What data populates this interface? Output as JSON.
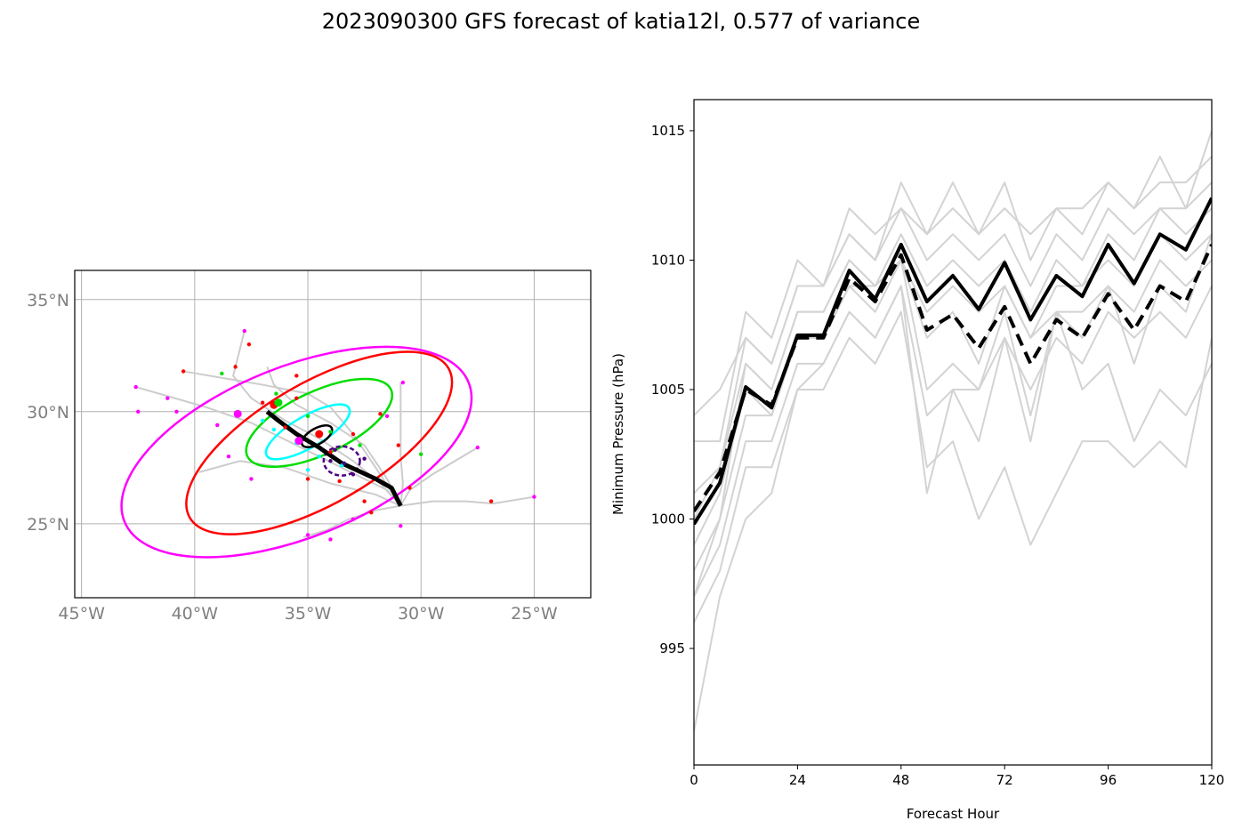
{
  "title": "2023090300 GFS forecast of katia12l, 0.577 of variance",
  "chart_data": [
    {
      "type": "scatter",
      "subtype": "map-track",
      "xlim": [
        -45.3,
        -22.5
      ],
      "ylim": [
        21.7,
        36.3
      ],
      "x_ticks": [
        -45,
        -40,
        -35,
        -30,
        -25
      ],
      "x_tick_labels": [
        "45°W",
        "40°W",
        "35°W",
        "30°W",
        "25°W"
      ],
      "y_ticks": [
        25,
        30,
        35
      ],
      "y_tick_labels": [
        "25°N",
        "30°N",
        "35°N"
      ],
      "grid": true,
      "mean_track": {
        "lon": [
          -30.9,
          -31.3,
          -32.0,
          -33.5,
          -34.5,
          -35.5,
          -36.3,
          -36.8
        ],
        "lat": [
          25.8,
          26.6,
          27.0,
          27.7,
          28.4,
          29.0,
          29.6,
          30.0
        ]
      },
      "ensemble_tracks": [
        {
          "lon": [
            -30.9,
            -31.8,
            -33.0,
            -34.5,
            -36.0,
            -37.5,
            -38.3,
            -37.8
          ],
          "lat": [
            25.8,
            26.8,
            27.8,
            28.8,
            29.6,
            30.6,
            31.6,
            33.6
          ]
        },
        {
          "lon": [
            -30.9,
            -31.5,
            -33.5,
            -35.5,
            -37.5,
            -39.5,
            -42.6
          ],
          "lat": [
            25.8,
            26.5,
            27.5,
            28.5,
            29.5,
            30.2,
            31.1
          ]
        },
        {
          "lon": [
            -30.9,
            -30.5,
            -29.5,
            -28.5,
            -27.5
          ],
          "lat": [
            25.8,
            26.5,
            27.2,
            27.8,
            28.4
          ]
        },
        {
          "lon": [
            -30.9,
            -29.5,
            -28.0,
            -26.8,
            -25.0
          ],
          "lat": [
            25.8,
            26.0,
            26.0,
            25.9,
            26.2
          ]
        },
        {
          "lon": [
            -30.9,
            -32.0,
            -33.2,
            -34.2,
            -35.2
          ],
          "lat": [
            25.8,
            25.6,
            25.2,
            24.7,
            24.4
          ]
        },
        {
          "lon": [
            -30.9,
            -31.5,
            -32.5,
            -34.0,
            -35.5,
            -36.5,
            -36.8
          ],
          "lat": [
            25.8,
            27.0,
            28.5,
            29.5,
            30.3,
            31.2,
            32.0
          ]
        },
        {
          "lon": [
            -30.9,
            -32.0,
            -34.0,
            -36.0,
            -38.0,
            -39.8
          ],
          "lat": [
            25.8,
            26.3,
            26.8,
            27.5,
            27.8,
            27.3
          ]
        },
        {
          "lon": [
            -30.9,
            -30.8,
            -30.9,
            -30.9
          ],
          "lat": [
            25.8,
            26.8,
            28.0,
            31.3
          ]
        },
        {
          "lon": [
            -30.9,
            -32.0,
            -33.0,
            -34.0,
            -35.0,
            -37.0,
            -40.5
          ],
          "lat": [
            25.8,
            27.5,
            29.0,
            30.2,
            30.8,
            31.2,
            31.8
          ]
        }
      ],
      "ellipses": [
        {
          "color": "#ff00ff",
          "center_lon": -35.5,
          "center_lat": 28.2,
          "semi_major": 8.2,
          "semi_minor": 3.8,
          "angle_deg": -22
        },
        {
          "color": "#ff0000",
          "center_lon": -34.5,
          "center_lat": 28.6,
          "semi_major": 6.6,
          "semi_minor": 2.7,
          "angle_deg": -30
        },
        {
          "color": "#00dd00",
          "center_lon": -34.5,
          "center_lat": 29.5,
          "semi_major": 3.5,
          "semi_minor": 1.4,
          "angle_deg": -25
        },
        {
          "color": "#00ffff",
          "center_lon": -35.0,
          "center_lat": 29.1,
          "semi_major": 2.1,
          "semi_minor": 0.7,
          "angle_deg": -30
        },
        {
          "color": "#000000",
          "center_lon": -34.6,
          "center_lat": 28.9,
          "semi_major": 0.75,
          "semi_minor": 0.35,
          "angle_deg": -30
        },
        {
          "color": "#4b0082",
          "center_lon": -33.5,
          "center_lat": 27.8,
          "semi_major": 0.8,
          "semi_minor": 0.65,
          "angle_deg": 0
        }
      ],
      "point_groups": [
        {
          "color": "#ff00ff",
          "lon": [
            -42.6,
            -42.5,
            -41.2,
            -40.8,
            -39.0,
            -38.5,
            -37.8,
            -37.5,
            -35.0,
            -34.0,
            -33.0,
            -31.5,
            -30.8,
            -27.5,
            -25.0,
            -30.9
          ],
          "lat": [
            31.1,
            30.0,
            30.6,
            30.0,
            29.4,
            28.0,
            33.6,
            27.0,
            24.5,
            24.3,
            25.2,
            29.8,
            31.3,
            28.4,
            26.2,
            24.9
          ]
        },
        {
          "color": "#ff0000",
          "lon": [
            -40.5,
            -38.2,
            -37.6,
            -37.0,
            -35.5,
            -35.0,
            -34.0,
            -33.0,
            -32.2,
            -31.8,
            -31.0,
            -30.5,
            -32.5,
            -33.6,
            -26.9,
            -36.0,
            -35.5
          ],
          "lat": [
            31.8,
            32.0,
            33.0,
            30.4,
            31.6,
            27.0,
            28.2,
            29.0,
            25.5,
            29.9,
            28.5,
            26.6,
            26.0,
            26.9,
            26.0,
            29.3,
            30.6
          ]
        },
        {
          "color": "#00dd00",
          "lon": [
            -38.8,
            -36.4,
            -35.0,
            -34.0,
            -32.7,
            -30.0
          ],
          "lat": [
            31.7,
            30.8,
            29.8,
            29.1,
            28.5,
            28.1
          ]
        },
        {
          "color": "#00ffff",
          "lon": [
            -37.0,
            -36.5,
            -35.5,
            -34.5,
            -33.5,
            -35.0
          ],
          "lat": [
            29.6,
            29.2,
            28.6,
            28.0,
            27.6,
            27.4
          ]
        },
        {
          "color": "#4b0082",
          "lon": [
            -33.8,
            -33.4,
            -33.0,
            -32.5,
            -34.0
          ],
          "lat": [
            28.3,
            27.7,
            27.2,
            27.9,
            27.8
          ]
        }
      ],
      "large_points": [
        {
          "color": "#ff00ff",
          "lon": -38.1,
          "lat": 29.9
        },
        {
          "color": "#ff0000",
          "lon": -36.5,
          "lat": 30.3
        },
        {
          "color": "#00dd00",
          "lon": -36.3,
          "lat": 30.4
        },
        {
          "color": "#ff00ff",
          "lon": -35.4,
          "lat": 28.7
        },
        {
          "color": "#ff0000",
          "lon": -34.5,
          "lat": 29.0
        }
      ]
    },
    {
      "type": "line",
      "xlabel": "Forecast Hour",
      "ylabel": "Minimum Pressure (hPa)",
      "xlim": [
        0,
        120
      ],
      "ylim": [
        990.5,
        1016.2
      ],
      "x_ticks": [
        0,
        24,
        48,
        72,
        96,
        120
      ],
      "y_ticks": [
        995,
        1000,
        1005,
        1010,
        1015
      ],
      "x": [
        0,
        6,
        12,
        18,
        24,
        30,
        36,
        42,
        48,
        54,
        60,
        66,
        72,
        78,
        84,
        90,
        96,
        102,
        108,
        114,
        120
      ],
      "series": [
        {
          "role": "solid-mean",
          "color": "#000000",
          "values": [
            999.8,
            1001.4,
            1005.1,
            1004.3,
            1007.1,
            1007.1,
            1009.6,
            1008.5,
            1010.6,
            1008.4,
            1009.4,
            1008.1,
            1009.9,
            1007.7,
            1009.4,
            1008.6,
            1010.6,
            1009.1,
            1011.0,
            1010.4,
            1012.4
          ]
        },
        {
          "role": "dashed-mean",
          "color": "#000000",
          "values": [
            1000.3,
            1001.8,
            1005.0,
            1004.4,
            1007.0,
            1007.0,
            1009.3,
            1008.4,
            1010.2,
            1007.3,
            1007.9,
            1006.6,
            1008.2,
            1006.0,
            1007.7,
            1007.0,
            1008.7,
            1007.3,
            1009.0,
            1008.4,
            1010.6
          ]
        },
        {
          "role": "ensemble",
          "color": "#d3d3d3",
          "values": [
            991.8,
            997.0,
            1000.0,
            1001.0,
            1005.0,
            1005.0,
            1007.0,
            1006.0,
            1008.0,
            1002.0,
            1003.0,
            1000.0,
            1002.0,
            999.0,
            1001.0,
            1003.0,
            1003.0,
            1002.0,
            1003.0,
            1002.0,
            1007.0
          ]
        },
        {
          "role": "ensemble",
          "color": "#d3d3d3",
          "values": [
            996.0,
            998.0,
            1002.0,
            1002.0,
            1005.0,
            1006.0,
            1008.0,
            1007.0,
            1009.0,
            1001.0,
            1005.0,
            1003.0,
            1007.0,
            1003.0,
            1008.0,
            1005.0,
            1006.0,
            1003.0,
            1005.0,
            1004.0,
            1006.0
          ]
        },
        {
          "role": "ensemble",
          "color": "#d3d3d3",
          "values": [
            997.0,
            999.0,
            1003.0,
            1003.0,
            1006.0,
            1006.0,
            1008.0,
            1007.0,
            1009.0,
            1004.0,
            1005.0,
            1005.0,
            1007.0,
            1005.0,
            1007.0,
            1006.0,
            1008.0,
            1007.0,
            1008.0,
            1007.0,
            1009.0
          ]
        },
        {
          "role": "ensemble",
          "color": "#d3d3d3",
          "values": [
            998.0,
            1000.0,
            1004.0,
            1004.0,
            1007.0,
            1007.0,
            1009.0,
            1008.0,
            1010.0,
            1007.0,
            1008.0,
            1006.0,
            1009.0,
            1007.0,
            1008.0,
            1008.0,
            1009.0,
            1008.0,
            1010.0,
            1009.0,
            1010.0
          ]
        },
        {
          "role": "ensemble",
          "color": "#d3d3d3",
          "values": [
            999.0,
            1001.0,
            1005.0,
            1004.0,
            1007.0,
            1007.0,
            1009.0,
            1009.0,
            1010.0,
            1008.0,
            1009.0,
            1008.0,
            1009.0,
            1007.0,
            1009.0,
            1009.0,
            1010.0,
            1009.0,
            1011.0,
            1010.0,
            1011.0
          ]
        },
        {
          "role": "ensemble",
          "color": "#d3d3d3",
          "values": [
            1000.0,
            1002.0,
            1006.0,
            1005.0,
            1008.0,
            1008.0,
            1010.0,
            1009.0,
            1011.0,
            1009.0,
            1010.0,
            1009.0,
            1010.0,
            1008.0,
            1010.0,
            1009.0,
            1011.0,
            1010.0,
            1012.0,
            1011.0,
            1012.0
          ]
        },
        {
          "role": "ensemble",
          "color": "#d3d3d3",
          "values": [
            1001.0,
            1002.0,
            1007.0,
            1006.0,
            1009.0,
            1009.0,
            1011.0,
            1010.0,
            1012.0,
            1010.0,
            1011.0,
            1010.0,
            1011.0,
            1009.0,
            1011.0,
            1010.0,
            1012.0,
            1011.0,
            1012.0,
            1012.0,
            1013.0
          ]
        },
        {
          "role": "ensemble",
          "color": "#d3d3d3",
          "values": [
            1003.0,
            1003.0,
            1008.0,
            1007.0,
            1010.0,
            1009.0,
            1012.0,
            1011.0,
            1012.0,
            1011.0,
            1012.0,
            1011.0,
            1012.0,
            1011.0,
            1012.0,
            1011.0,
            1013.0,
            1012.0,
            1013.0,
            1013.0,
            1014.0
          ]
        },
        {
          "role": "ensemble",
          "color": "#d3d3d3",
          "values": [
            1004.0,
            1005.0,
            1007.0,
            1006.0,
            1009.0,
            1009.0,
            1011.0,
            1010.0,
            1013.0,
            1011.0,
            1013.0,
            1011.0,
            1013.0,
            1010.0,
            1012.0,
            1012.0,
            1013.0,
            1012.0,
            1014.0,
            1012.0,
            1015.0
          ]
        },
        {
          "role": "ensemble",
          "color": "#d3d3d3",
          "values": [
            997.0,
            1000.0,
            1006.0,
            1005.0,
            1008.0,
            1008.0,
            1010.0,
            1009.0,
            1010.0,
            1005.0,
            1006.0,
            1005.0,
            1008.0,
            1004.0,
            1008.0,
            1007.0,
            1009.0,
            1006.0,
            1009.0,
            1008.0,
            1011.0
          ]
        }
      ]
    }
  ]
}
